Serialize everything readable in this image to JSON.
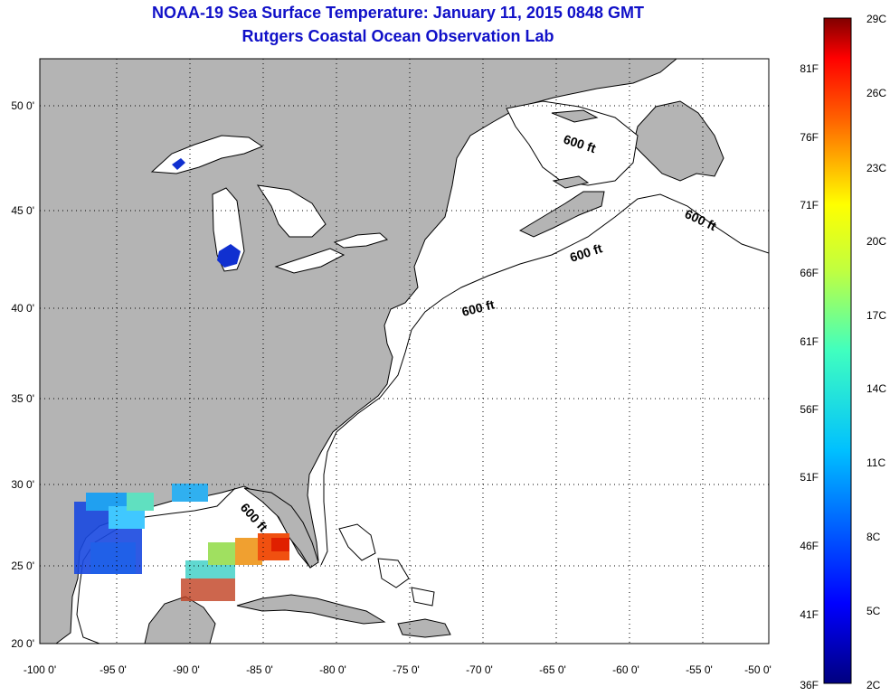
{
  "title": {
    "line1": "NOAA-19 Sea Surface Temperature:  January 11, 2015 0848 GMT",
    "line2": "Rutgers Coastal Ocean Observation Lab"
  },
  "axes": {
    "longitude_labels": [
      "-100 0'",
      "-95 0'",
      "-90 0'",
      "-85 0'",
      "-80 0'",
      "-75 0'",
      "-70 0'",
      "-65 0'",
      "-60 0'",
      "-55 0'",
      "-50 0'"
    ],
    "latitude_labels": [
      "50 0'",
      "45 0'",
      "40 0'",
      "35 0'",
      "30 0'",
      "25 0'",
      "20 0'"
    ]
  },
  "isobath_labels": [
    "600 ft",
    "600 ft",
    "600 ft",
    "600 ft",
    "600 ft"
  ],
  "colorbar": {
    "celsius_labels": [
      "29C",
      "26C",
      "23C",
      "20C",
      "17C",
      "14C",
      "11C",
      "8C",
      "5C",
      "2C"
    ],
    "fahrenheit_labels": [
      "81F",
      "76F",
      "71F",
      "66F",
      "61F",
      "56F",
      "51F",
      "46F",
      "41F",
      "36F"
    ]
  },
  "colors": {
    "land": "#b4b4b4",
    "water": "#ffffff",
    "title": "#1010c8",
    "lake_cold": "#1030d0"
  }
}
